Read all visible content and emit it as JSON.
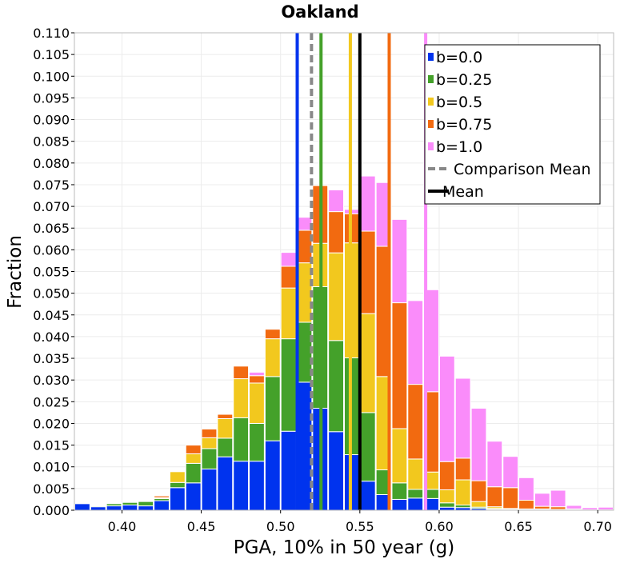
{
  "chart_data": {
    "type": "bar",
    "stacking": "stacked",
    "title": "Oakland",
    "xlabel": "PGA, 10% in 50 year (g)",
    "ylabel": "Fraction",
    "xlim": [
      0.37,
      0.71
    ],
    "ylim": [
      0.0,
      0.11
    ],
    "grid": true,
    "legend_position": "top-right",
    "bin_width": 0.01,
    "x_ticks": [
      "0.40",
      "0.45",
      "0.50",
      "0.55",
      "0.60",
      "0.65",
      "0.70"
    ],
    "x_tick_values": [
      0.4,
      0.45,
      0.5,
      0.55,
      0.6,
      0.65,
      0.7
    ],
    "y_ticks": [
      "0.000",
      "0.005",
      "0.010",
      "0.015",
      "0.020",
      "0.025",
      "0.030",
      "0.035",
      "0.040",
      "0.045",
      "0.050",
      "0.055",
      "0.060",
      "0.065",
      "0.070",
      "0.075",
      "0.080",
      "0.085",
      "0.090",
      "0.095",
      "0.100",
      "0.105",
      "0.110"
    ],
    "y_tick_values": [
      0.0,
      0.005,
      0.01,
      0.015,
      0.02,
      0.025,
      0.03,
      0.035,
      0.04,
      0.045,
      0.05,
      0.055,
      0.06,
      0.065,
      0.07,
      0.075,
      0.08,
      0.085,
      0.09,
      0.095,
      0.1,
      0.105,
      0.11
    ],
    "bin_starts": [
      0.37,
      0.38,
      0.39,
      0.4,
      0.41,
      0.42,
      0.43,
      0.44,
      0.45,
      0.46,
      0.47,
      0.48,
      0.49,
      0.5,
      0.51,
      0.52,
      0.53,
      0.54,
      0.55,
      0.56,
      0.57,
      0.58,
      0.59,
      0.6,
      0.61,
      0.62,
      0.63,
      0.64,
      0.65,
      0.66,
      0.67,
      0.68,
      0.69,
      0.7
    ],
    "series": [
      {
        "name": "b=0.0",
        "color": "#0033ee",
        "values": [
          0.0015,
          0.0008,
          0.001,
          0.0012,
          0.001,
          0.0022,
          0.0052,
          0.0063,
          0.0095,
          0.0123,
          0.0113,
          0.0113,
          0.016,
          0.0182,
          0.0295,
          0.0235,
          0.0181,
          0.0128,
          0.0067,
          0.0036,
          0.0025,
          0.0028,
          0.0027,
          0.0007,
          0.0006,
          0.0004,
          0.0002,
          0.0001,
          0,
          0,
          0,
          0,
          0,
          0
        ]
      },
      {
        "name": "b=0.25",
        "color": "#44a12a",
        "values": [
          0,
          0.0002,
          0.0005,
          0.0006,
          0.001,
          0.0005,
          0.0012,
          0.0045,
          0.0047,
          0.0043,
          0.01,
          0.0087,
          0.0148,
          0.0213,
          0.0138,
          0.028,
          0.021,
          0.0223,
          0.0158,
          0.0057,
          0.0038,
          0.002,
          0.0021,
          0.001,
          0.0006,
          0.0003,
          0.0002,
          0.0001,
          0.0001,
          0.0001,
          0,
          0,
          0,
          0
        ]
      },
      {
        "name": "b=0.5",
        "color": "#f2c81e",
        "values": [
          0,
          0,
          0,
          0,
          0,
          0.0002,
          0.0025,
          0.0022,
          0.0025,
          0.0045,
          0.009,
          0.0093,
          0.0087,
          0.0117,
          0.0137,
          0.01,
          0.0202,
          0.0265,
          0.0228,
          0.0215,
          0.0125,
          0.007,
          0.004,
          0.003,
          0.0058,
          0.0013,
          0.0004,
          0.0002,
          0.0002,
          0.0002,
          0.0002,
          0.0001,
          0,
          0
        ]
      },
      {
        "name": "b=0.75",
        "color": "#f26a10",
        "values": [
          0,
          0,
          0,
          0,
          0,
          0.0004,
          0.0001,
          0.002,
          0.002,
          0.001,
          0.0029,
          0.0017,
          0.0022,
          0.005,
          0.0075,
          0.0133,
          0.0095,
          0.0067,
          0.019,
          0.03,
          0.029,
          0.0172,
          0.0185,
          0.0065,
          0.005,
          0.0048,
          0.0046,
          0.0048,
          0.002,
          0.0006,
          0.0006,
          0.0002,
          0.0001,
          0.0001
        ]
      },
      {
        "name": "b=1.0",
        "color": "#fa8cfa",
        "values": [
          0,
          0,
          0,
          0,
          0,
          0,
          0,
          0,
          0,
          0,
          0,
          0.0008,
          0,
          0.0032,
          0.003,
          0.0001,
          0.005,
          0.001,
          0.0127,
          0.0147,
          0.0192,
          0.0193,
          0.0235,
          0.0243,
          0.0184,
          0.0167,
          0.0105,
          0.0072,
          0.0052,
          0.003,
          0.0038,
          0.0008,
          0.0005,
          0.0006
        ]
      }
    ],
    "vertical_lines": [
      {
        "name": "b=0.0 mean",
        "x": 0.5105,
        "color": "#0033ee",
        "style": "solid"
      },
      {
        "name": "b=0.25 mean",
        "x": 0.5255,
        "color": "#44a12a",
        "style": "solid"
      },
      {
        "name": "b=0.5 mean",
        "x": 0.544,
        "color": "#f2c81e",
        "style": "solid"
      },
      {
        "name": "b=0.75 mean",
        "x": 0.5685,
        "color": "#f26a10",
        "style": "solid"
      },
      {
        "name": "b=1.0 mean",
        "x": 0.5915,
        "color": "#fa8cfa",
        "style": "solid"
      },
      {
        "name": "Comparison Mean",
        "x": 0.5195,
        "color": "#888888",
        "style": "dashed"
      },
      {
        "name": "Mean",
        "x": 0.55,
        "color": "#000000",
        "style": "solid"
      }
    ],
    "legend": [
      {
        "label": "b=0.0",
        "color": "#0033ee",
        "kind": "box"
      },
      {
        "label": "b=0.25",
        "color": "#44a12a",
        "kind": "box"
      },
      {
        "label": "b=0.5",
        "color": "#f2c81e",
        "kind": "box"
      },
      {
        "label": "b=0.75",
        "color": "#f26a10",
        "kind": "box"
      },
      {
        "label": "b=1.0",
        "color": "#fa8cfa",
        "kind": "box"
      },
      {
        "label": "Comparison Mean",
        "color": "#888888",
        "kind": "dashed-line"
      },
      {
        "label": "Mean",
        "color": "#000000",
        "kind": "line"
      }
    ]
  }
}
